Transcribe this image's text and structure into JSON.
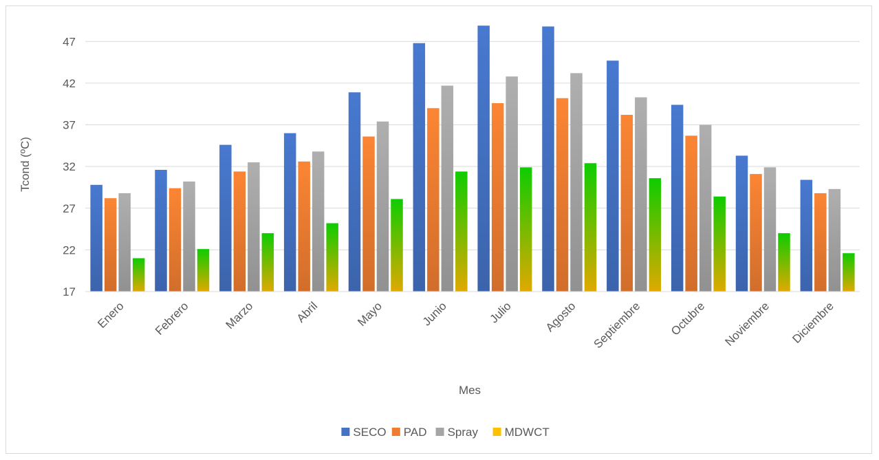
{
  "chart_data": {
    "type": "bar",
    "title": "",
    "xlabel": "Mes",
    "ylabel": "Tcond (ºC)",
    "ylim": [
      17,
      49.5
    ],
    "yticks": [
      17,
      22,
      27,
      32,
      37,
      42,
      47
    ],
    "grid": true,
    "legend": "bottom",
    "categories": [
      "Enero",
      "Febrero",
      "Marzo",
      "Abril",
      "Mayo",
      "Junio",
      "Julio",
      "Agosto",
      "Septiembre",
      "Octubre",
      "Noviembre",
      "Diciembre"
    ],
    "series": [
      {
        "name": "SECO",
        "color": "#4472C4",
        "values": [
          29.8,
          31.6,
          34.6,
          36.0,
          40.9,
          46.8,
          48.9,
          48.8,
          44.7,
          39.4,
          33.3,
          30.4
        ]
      },
      {
        "name": "PAD",
        "color": "#ED7D31",
        "values": [
          28.2,
          29.4,
          31.4,
          32.6,
          35.6,
          39.0,
          39.6,
          40.2,
          38.2,
          35.7,
          31.1,
          28.8
        ]
      },
      {
        "name": "Spray",
        "color": "#A5A5A5",
        "values": [
          28.8,
          30.2,
          32.5,
          33.8,
          37.4,
          41.7,
          42.8,
          43.2,
          40.3,
          37.0,
          31.9,
          29.3
        ]
      },
      {
        "name": "MDWCT",
        "color": "#FFC000",
        "values": [
          21.0,
          22.1,
          24.0,
          25.2,
          28.1,
          31.4,
          31.9,
          32.4,
          30.6,
          28.4,
          24.0,
          21.6
        ]
      }
    ]
  }
}
